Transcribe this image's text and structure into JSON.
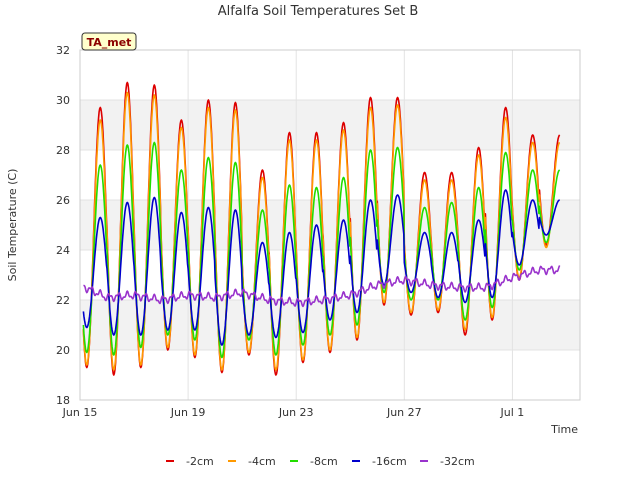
{
  "chart_data": {
    "type": "line",
    "title": "Alfalfa Soil Temperatures Set B",
    "xlabel": "Time",
    "ylabel": "Soil Temperature (C)",
    "ylim": [
      18,
      32
    ],
    "yticks": [
      18,
      20,
      22,
      24,
      26,
      28,
      30,
      32
    ],
    "xlim": [
      "2024-06-15",
      "2024-07-03T12:00"
    ],
    "xticks": [
      {
        "date": "2024-06-15",
        "label": "Jun 15"
      },
      {
        "date": "2024-06-19",
        "label": "Jun 19"
      },
      {
        "date": "2024-06-23",
        "label": "Jun 23"
      },
      {
        "date": "2024-06-27",
        "label": "Jun 27"
      },
      {
        "date": "2024-07-01",
        "label": "Jul 1"
      }
    ],
    "grid": true,
    "banding": "alternating horizontal bands",
    "legend_position": "bottom",
    "annotation": "TA_met",
    "days": [
      "Jun 15",
      "Jun 16",
      "Jun 17",
      "Jun 18",
      "Jun 19",
      "Jun 20",
      "Jun 21",
      "Jun 22",
      "Jun 23",
      "Jun 24",
      "Jun 25",
      "Jun 26",
      "Jun 27",
      "Jun 28",
      "Jun 29",
      "Jun 30",
      "Jul 1",
      "Jul 2"
    ],
    "series": [
      {
        "name": "-2cm",
        "color": "#dd0000",
        "min": [
          19.3,
          19.0,
          19.3,
          20.0,
          19.7,
          19.1,
          19.8,
          19.0,
          19.5,
          19.9,
          20.4,
          21.8,
          21.4,
          21.5,
          20.6,
          21.2,
          22.8,
          24.2
        ],
        "max": [
          29.7,
          30.7,
          30.6,
          29.2,
          30.0,
          29.9,
          27.2,
          28.7,
          28.7,
          29.1,
          30.1,
          30.1,
          27.1,
          27.1,
          28.1,
          29.7,
          28.6,
          28.6
        ]
      },
      {
        "name": "-4cm",
        "color": "#ff9900",
        "min": [
          19.4,
          19.2,
          19.4,
          20.1,
          19.8,
          19.2,
          19.9,
          19.2,
          19.6,
          20.0,
          20.5,
          21.9,
          21.5,
          21.6,
          20.8,
          21.3,
          22.9,
          24.1
        ],
        "max": [
          29.2,
          30.3,
          30.2,
          28.9,
          29.7,
          29.6,
          26.9,
          28.4,
          28.4,
          28.8,
          29.7,
          29.8,
          26.8,
          26.8,
          27.8,
          29.3,
          28.3,
          28.3
        ]
      },
      {
        "name": "-8cm",
        "color": "#22dd00",
        "min": [
          19.9,
          19.8,
          20.1,
          20.6,
          20.4,
          19.7,
          20.4,
          19.8,
          20.2,
          20.6,
          21.0,
          22.3,
          22.0,
          22.0,
          21.2,
          21.7,
          23.2,
          24.3
        ],
        "max": [
          27.4,
          28.2,
          28.3,
          27.2,
          27.7,
          27.5,
          25.6,
          26.6,
          26.5,
          26.9,
          28.0,
          28.1,
          25.7,
          25.9,
          26.5,
          27.9,
          27.2,
          27.2
        ]
      },
      {
        "name": "-16cm",
        "color": "#0000cc",
        "min": [
          20.9,
          20.6,
          20.6,
          20.8,
          20.8,
          20.2,
          20.6,
          20.5,
          20.7,
          21.2,
          21.5,
          22.6,
          22.3,
          22.1,
          21.9,
          22.1,
          23.4,
          24.6
        ],
        "max": [
          25.3,
          25.9,
          26.1,
          25.5,
          25.7,
          25.6,
          24.3,
          24.7,
          25.0,
          25.2,
          26.0,
          26.2,
          24.7,
          24.7,
          25.2,
          26.4,
          26.0,
          26.0
        ]
      },
      {
        "name": "-32cm",
        "color": "#9933cc",
        "values": [
          22.6,
          22.1,
          22.2,
          22.0,
          22.2,
          22.1,
          22.3,
          22.0,
          21.9,
          22.0,
          22.2,
          22.6,
          22.8,
          22.6,
          22.5,
          22.5,
          22.9,
          23.2
        ]
      }
    ]
  }
}
